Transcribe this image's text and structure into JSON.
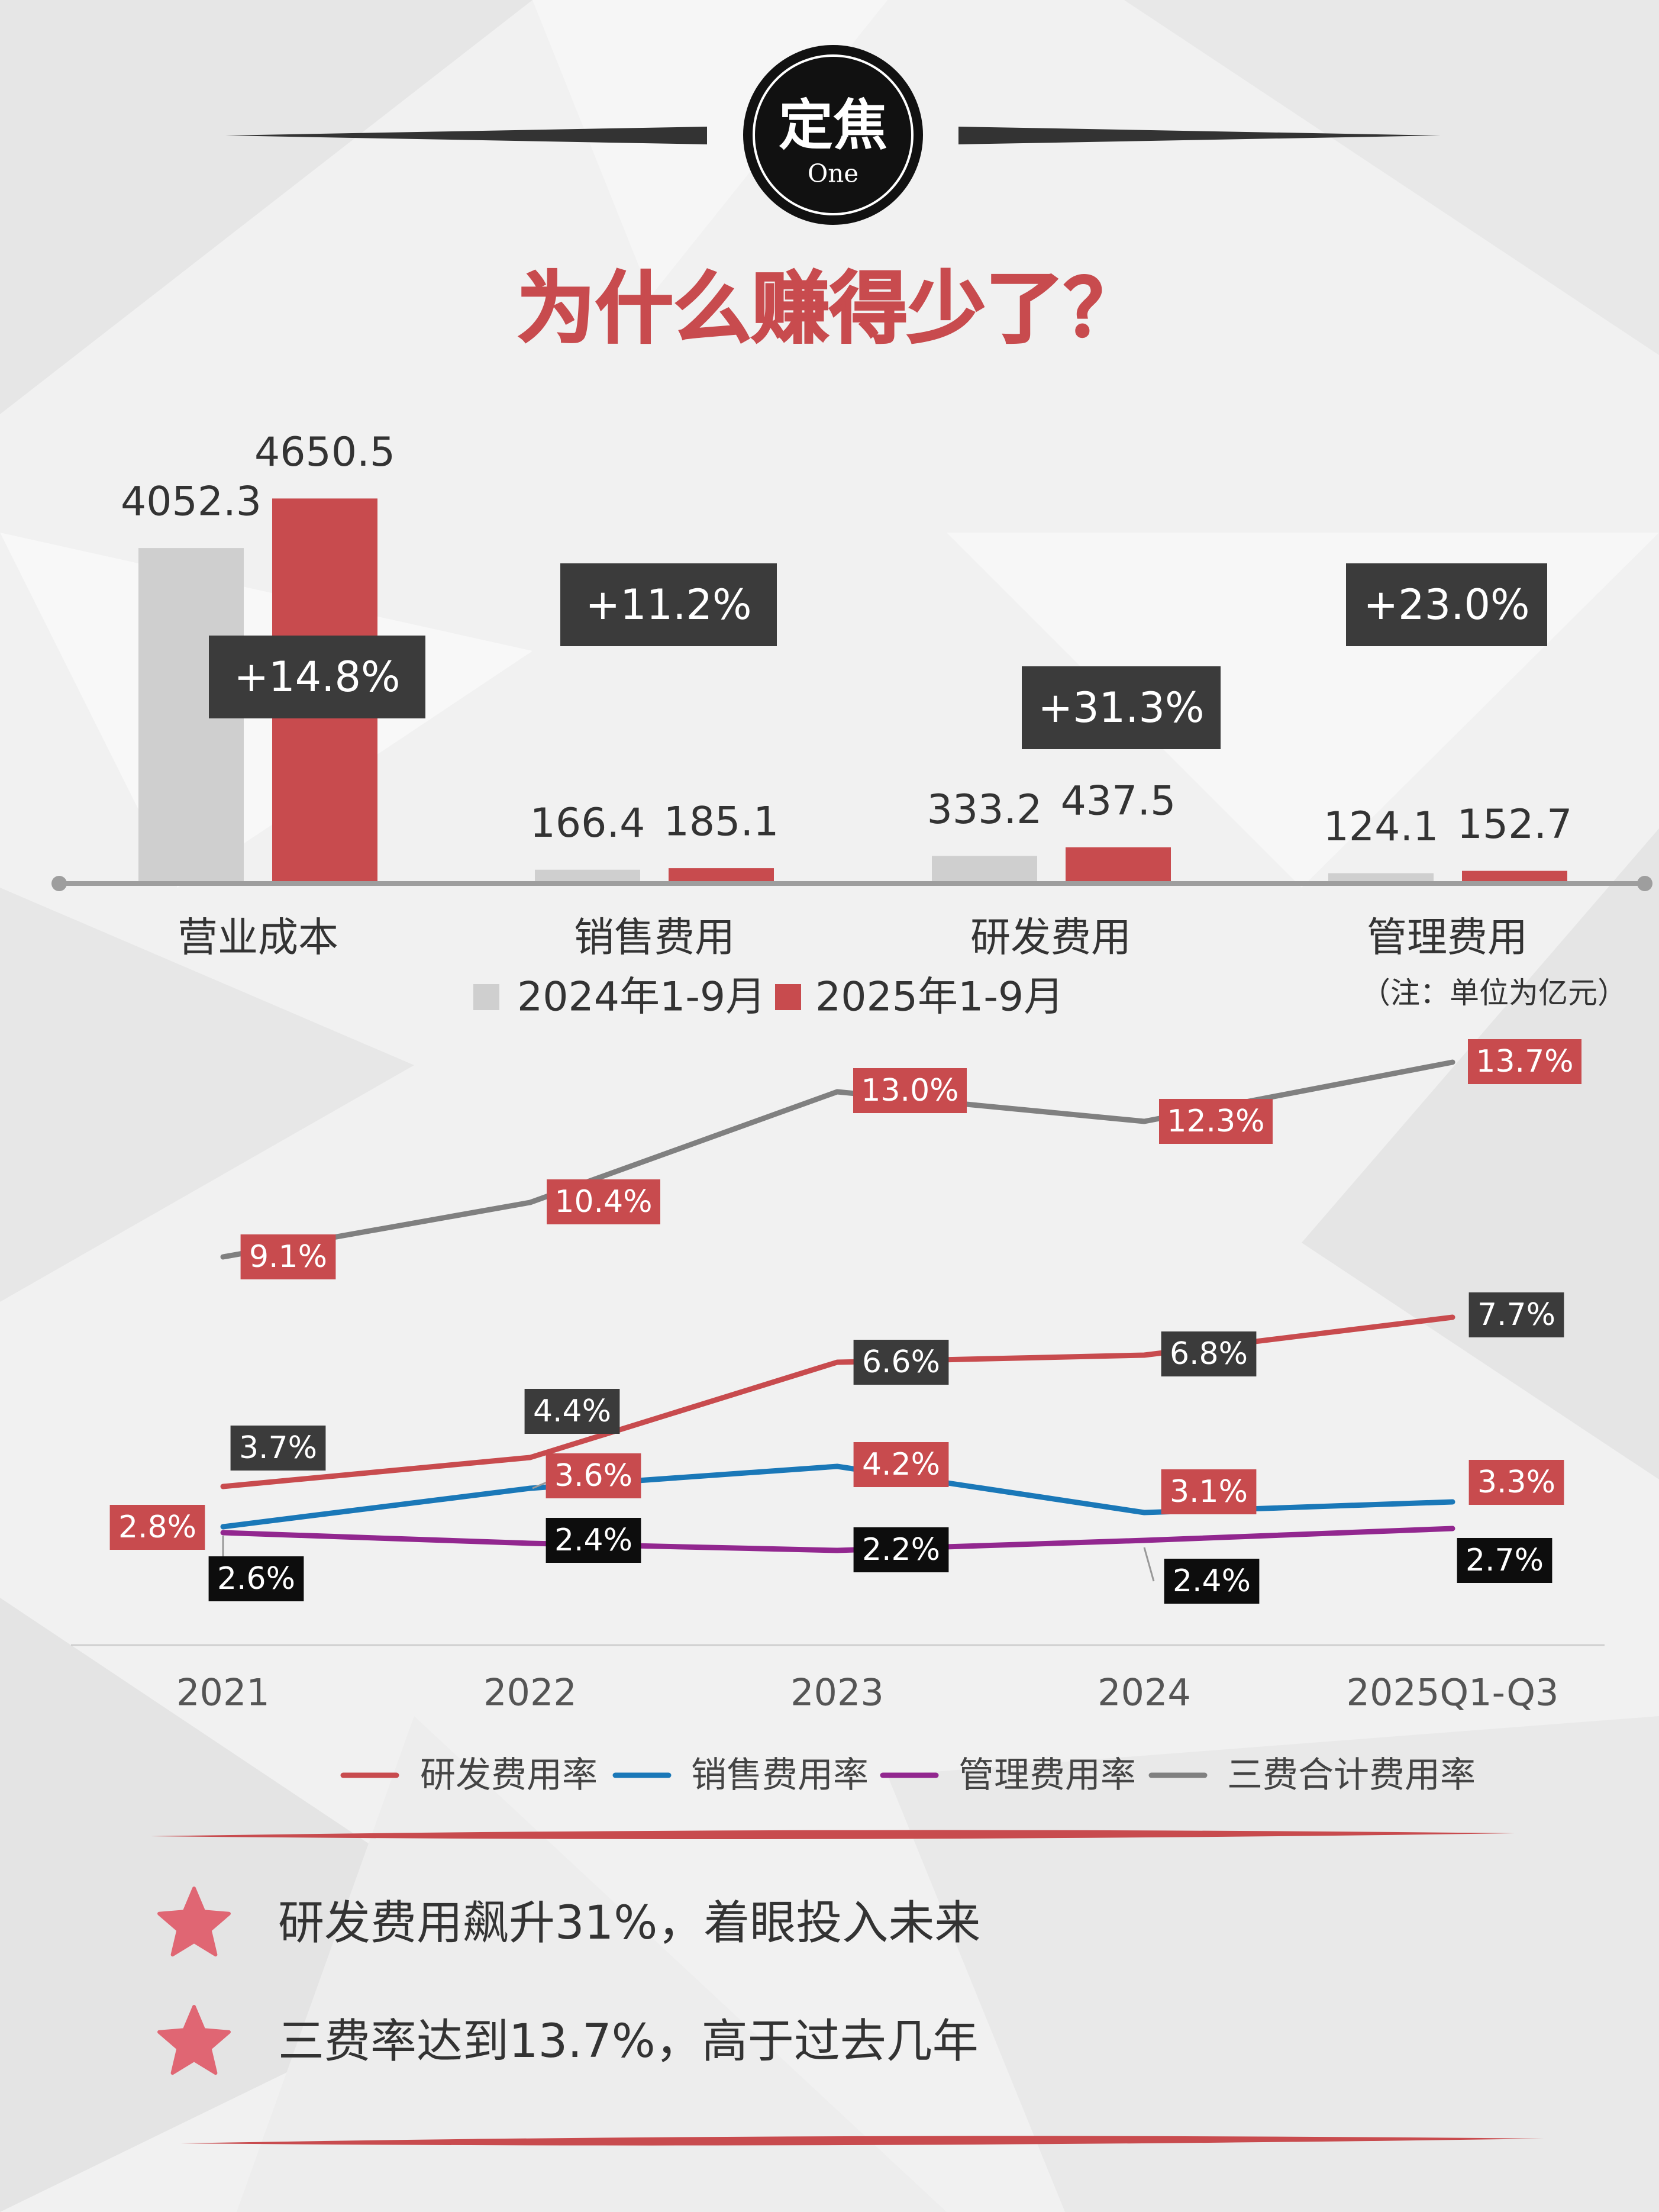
{
  "badge": {
    "title": "定焦",
    "subtitle": "One"
  },
  "headline": "为什么赚得少了？",
  "colors": {
    "red": "#c84b4e",
    "gray_bar": "#cfcfcf",
    "dark_box": "#3b3b3b",
    "black_box": "#0d0d0d",
    "blue": "#1a78b8",
    "purple": "#92278f",
    "gray_line": "#808080",
    "text": "#333333"
  },
  "chart_data": [
    {
      "type": "bar",
      "categories": [
        "营业成本",
        "销售费用",
        "研发费用",
        "管理费用"
      ],
      "series": [
        {
          "name": "2024年1-9月",
          "values": [
            4052.3,
            166.4,
            333.2,
            124.1
          ]
        },
        {
          "name": "2025年1-9月",
          "values": [
            4650.5,
            185.1,
            437.5,
            152.7
          ]
        }
      ],
      "growth_labels": [
        "+14.8%",
        "+11.2%",
        "+31.3%",
        "+23.0%"
      ],
      "note": "（注：单位为亿元）"
    },
    {
      "type": "line",
      "categories": [
        "2021",
        "2022",
        "2023",
        "2024",
        "2025Q1-Q3"
      ],
      "series": [
        {
          "name": "研发费用率",
          "values": [
            3.7,
            4.4,
            6.6,
            6.8,
            7.7
          ],
          "labels": [
            "3.7%",
            "4.4%",
            "6.6%",
            "6.8%",
            "7.7%"
          ]
        },
        {
          "name": "销售费用率",
          "values": [
            2.6,
            3.6,
            4.2,
            3.1,
            3.3
          ],
          "labels": [
            "2.6%",
            "3.6%",
            "4.2%",
            "3.1%",
            "3.3%"
          ]
        },
        {
          "name": "管理费用率",
          "values": [
            2.8,
            2.4,
            2.2,
            2.4,
            2.7
          ],
          "labels": [
            "2.8%",
            "2.4%",
            "2.2%",
            "2.4%",
            "2.7%"
          ]
        },
        {
          "name": "三费合计费用率",
          "values": [
            9.1,
            10.4,
            13.0,
            12.3,
            13.7
          ],
          "labels": [
            "9.1%",
            "10.4%",
            "13.0%",
            "12.3%",
            "13.7%"
          ]
        }
      ]
    }
  ],
  "takeaways": [
    "研发费用飙升31%，着眼投入未来",
    "三费率达到13.7%，高于过去几年"
  ]
}
